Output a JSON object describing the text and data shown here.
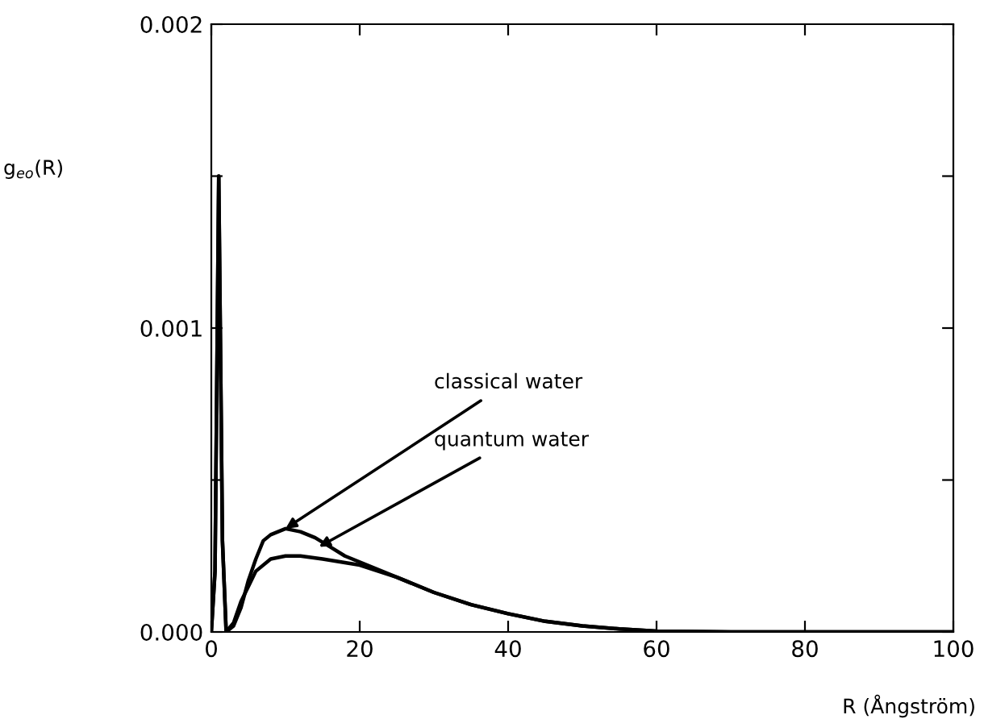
{
  "chart_data": {
    "type": "line",
    "xlabel": "R (Ångström)",
    "ylabel": "g$_{eo}$(R)",
    "xlim": [
      0,
      100
    ],
    "xticks": [
      0,
      20,
      40,
      60,
      80,
      100
    ],
    "ylim": [
      0,
      0.002
    ],
    "yticks": [
      {
        "value": 0,
        "label": "0.000"
      },
      {
        "value": 0.0005,
        "label": null
      },
      {
        "value": 0.001,
        "label": "0.001"
      },
      {
        "value": 0.0015,
        "label": null
      },
      {
        "value": 0.002,
        "label": "0.002"
      }
    ],
    "grid": false,
    "legend": false,
    "marker": "none",
    "line_style": "solid",
    "series": [
      {
        "color": "#000000",
        "x": [
          0,
          0.5,
          1,
          1.5,
          2,
          3,
          4,
          5,
          6,
          7,
          8,
          10,
          12,
          14,
          16,
          18,
          20,
          25,
          30,
          35,
          40,
          45,
          50,
          55,
          60,
          70,
          80,
          100
        ],
        "values": [
          0,
          0.0002,
          0.0015,
          0.0003,
          0,
          2e-05,
          8e-05,
          0.00017,
          0.00024,
          0.0003,
          0.00032,
          0.00034,
          0.00033,
          0.00031,
          0.00028,
          0.00025,
          0.00023,
          0.00018,
          0.00013,
          9e-05,
          6e-05,
          3.5e-05,
          2e-05,
          1e-05,
          3e-06,
          0,
          0,
          0
        ]
      },
      {
        "color": "#000000",
        "x": [
          0,
          0.5,
          1,
          1.5,
          2,
          3,
          4,
          5,
          6,
          8,
          10,
          12,
          15,
          20,
          25,
          30,
          35,
          40,
          45,
          50,
          55,
          60,
          70,
          80,
          100
        ],
        "values": [
          0,
          0.0002,
          0.0015,
          0.0003,
          0,
          3e-05,
          0.0001,
          0.00015,
          0.0002,
          0.00024,
          0.00025,
          0.00025,
          0.00024,
          0.00022,
          0.00018,
          0.00013,
          9e-05,
          6e-05,
          3.5e-05,
          2e-05,
          1e-05,
          3e-06,
          0,
          0,
          0
        ]
      }
    ],
    "annotations": [
      {
        "text": "classical water",
        "x": 10,
        "y": 0.00034
      },
      {
        "text": "quantum water",
        "x": 14.5,
        "y": 0.00028
      }
    ]
  }
}
